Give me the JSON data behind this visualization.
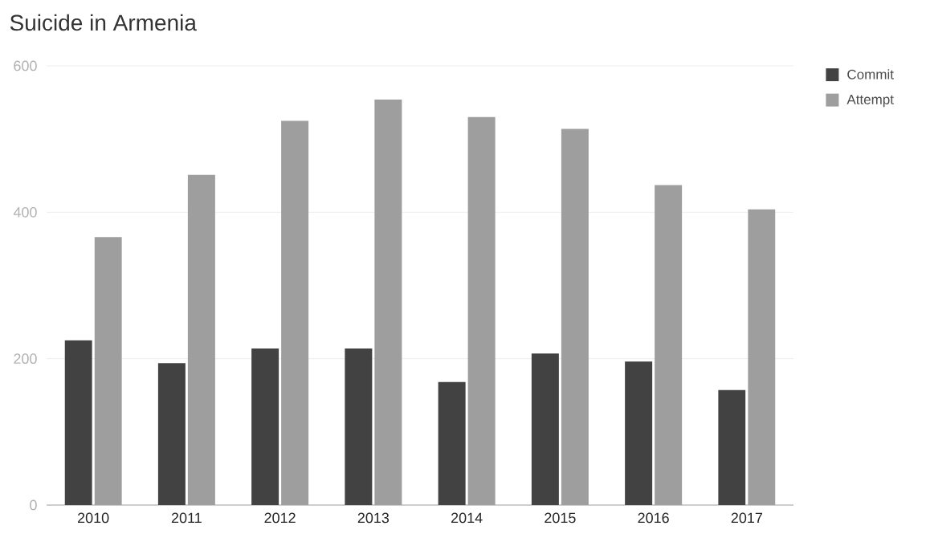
{
  "chart_data": {
    "type": "bar",
    "title": "Suicide in Armenia",
    "categories": [
      "2010",
      "2011",
      "2012",
      "2013",
      "2014",
      "2015",
      "2016",
      "2017"
    ],
    "series": [
      {
        "name": "Commit",
        "color": "#424242",
        "values": [
          225,
          194,
          214,
          214,
          168,
          207,
          196,
          157
        ]
      },
      {
        "name": "Attempt",
        "color": "#9e9e9e",
        "values": [
          366,
          451,
          525,
          554,
          530,
          514,
          437,
          404
        ]
      }
    ],
    "ylim": [
      0,
      600
    ],
    "yticks": [
      0,
      200,
      400,
      600
    ],
    "grid": "y",
    "legend": "top right"
  }
}
